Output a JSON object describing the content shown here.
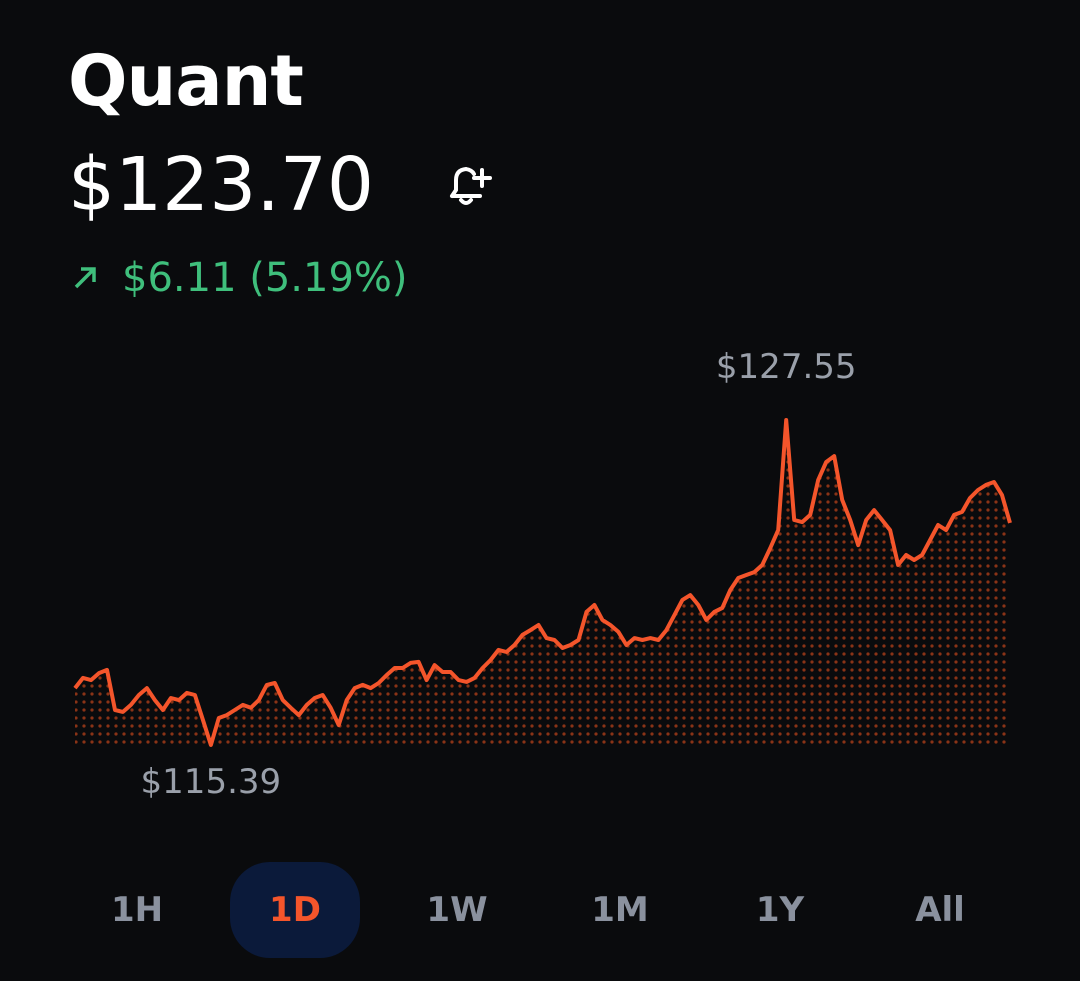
{
  "header": {
    "title": "Quant",
    "price": "$123.70",
    "change": "$6.11 (5.19%)"
  },
  "chart_data": {
    "type": "line",
    "color": "#f4552b",
    "values": [
      117.52,
      117.9,
      117.82,
      118.08,
      118.2,
      116.7,
      116.63,
      116.89,
      117.26,
      117.52,
      117.07,
      116.7,
      117.15,
      117.07,
      117.34,
      117.26,
      116.33,
      115.39,
      116.4,
      116.51,
      116.7,
      116.89,
      116.78,
      117.07,
      117.64,
      117.71,
      117.07,
      116.78,
      116.51,
      116.89,
      117.15,
      117.26,
      116.78,
      116.14,
      117.07,
      117.52,
      117.64,
      117.52,
      117.71,
      118.01,
      118.27,
      118.27,
      118.46,
      118.5,
      117.82,
      118.38,
      118.12,
      118.12,
      117.82,
      117.75,
      117.9,
      118.27,
      118.57,
      118.95,
      118.87,
      119.13,
      119.51,
      119.69,
      119.88,
      119.39,
      119.32,
      119.02,
      119.13,
      119.32,
      120.37,
      120.63,
      120.07,
      119.88,
      119.62,
      119.13,
      119.39,
      119.32,
      119.39,
      119.32,
      119.69,
      120.25,
      120.82,
      121.0,
      120.63,
      120.07,
      120.37,
      120.52,
      121.19,
      121.64,
      121.75,
      121.86,
      122.13,
      122.76,
      123.43,
      127.55,
      123.81,
      123.73,
      124.0,
      125.31,
      125.98,
      126.2,
      124.56,
      123.81,
      122.87,
      123.81,
      124.18,
      123.81,
      123.43,
      122.13,
      122.5,
      122.31,
      122.5,
      123.06,
      123.62,
      123.43,
      124.0,
      124.11,
      124.63,
      124.93,
      125.12,
      125.23,
      124.74,
      123.7
    ],
    "value_labels": [
      null,
      null,
      null,
      null,
      null,
      null,
      null,
      null,
      null,
      null,
      null,
      null,
      null,
      null,
      null,
      null,
      null,
      "$115.39",
      null,
      null,
      null,
      null,
      null,
      null,
      null,
      null,
      null,
      null,
      null,
      null,
      null,
      null,
      null,
      null,
      null,
      null,
      null,
      null,
      null,
      null,
      null,
      null,
      null,
      null,
      null,
      null,
      null,
      null,
      null,
      null,
      null,
      null,
      null,
      null,
      null,
      null,
      null,
      null,
      null,
      null,
      null,
      null,
      null,
      null,
      null,
      null,
      null,
      null,
      null,
      null,
      null,
      null,
      null,
      null,
      null,
      null,
      null,
      null,
      null,
      null,
      null,
      null,
      null,
      null,
      null,
      null,
      null,
      null,
      null,
      "$127.55",
      null,
      null,
      null,
      null,
      null,
      null,
      null,
      null,
      null,
      null,
      null,
      null,
      null,
      null,
      null,
      null,
      null,
      null,
      null,
      null,
      null,
      null,
      null,
      null,
      null,
      null,
      null,
      null
    ]
  },
  "tabs": {
    "items": [
      "1H",
      "1D",
      "1W",
      "1M",
      "1Y",
      "All"
    ],
    "selected": 1
  }
}
